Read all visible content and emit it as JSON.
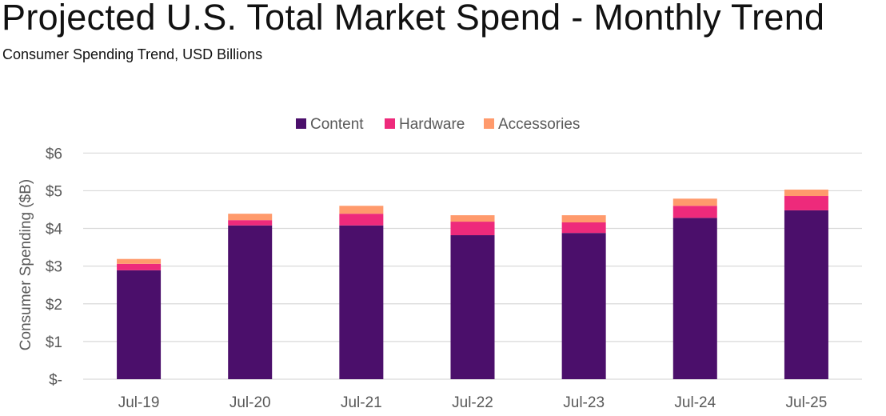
{
  "title": "Projected U.S. Total Market Spend - Monthly Trend",
  "subtitle": "Consumer Spending Trend, USD Billions",
  "chart_data": {
    "type": "bar",
    "stacked": true,
    "title": "Projected U.S. Total Market Spend - Monthly Trend",
    "subtitle": "Consumer Spending Trend, USD Billions",
    "xlabel": "",
    "ylabel": "Consumer Spending ($B)",
    "ylim": [
      0,
      6
    ],
    "yticks": [
      0,
      1,
      2,
      3,
      4,
      5,
      6
    ],
    "ytick_labels": [
      "$-",
      "$1",
      "$2",
      "$3",
      "$4",
      "$5",
      "$6"
    ],
    "grid": true,
    "legend_position": "top-center",
    "categories": [
      "Jul-19",
      "Jul-20",
      "Jul-21",
      "Jul-22",
      "Jul-23",
      "Jul-24",
      "Jul-25"
    ],
    "series": [
      {
        "name": "Content",
        "color": "#4B0F6B",
        "values": [
          2.89,
          4.08,
          4.08,
          3.82,
          3.88,
          4.28,
          4.48
        ]
      },
      {
        "name": "Hardware",
        "color": "#EE2A7B",
        "values": [
          0.17,
          0.14,
          0.31,
          0.36,
          0.28,
          0.32,
          0.38
        ]
      },
      {
        "name": "Accessories",
        "color": "#FF9A6C",
        "values": [
          0.13,
          0.17,
          0.21,
          0.17,
          0.19,
          0.19,
          0.17
        ]
      }
    ]
  }
}
